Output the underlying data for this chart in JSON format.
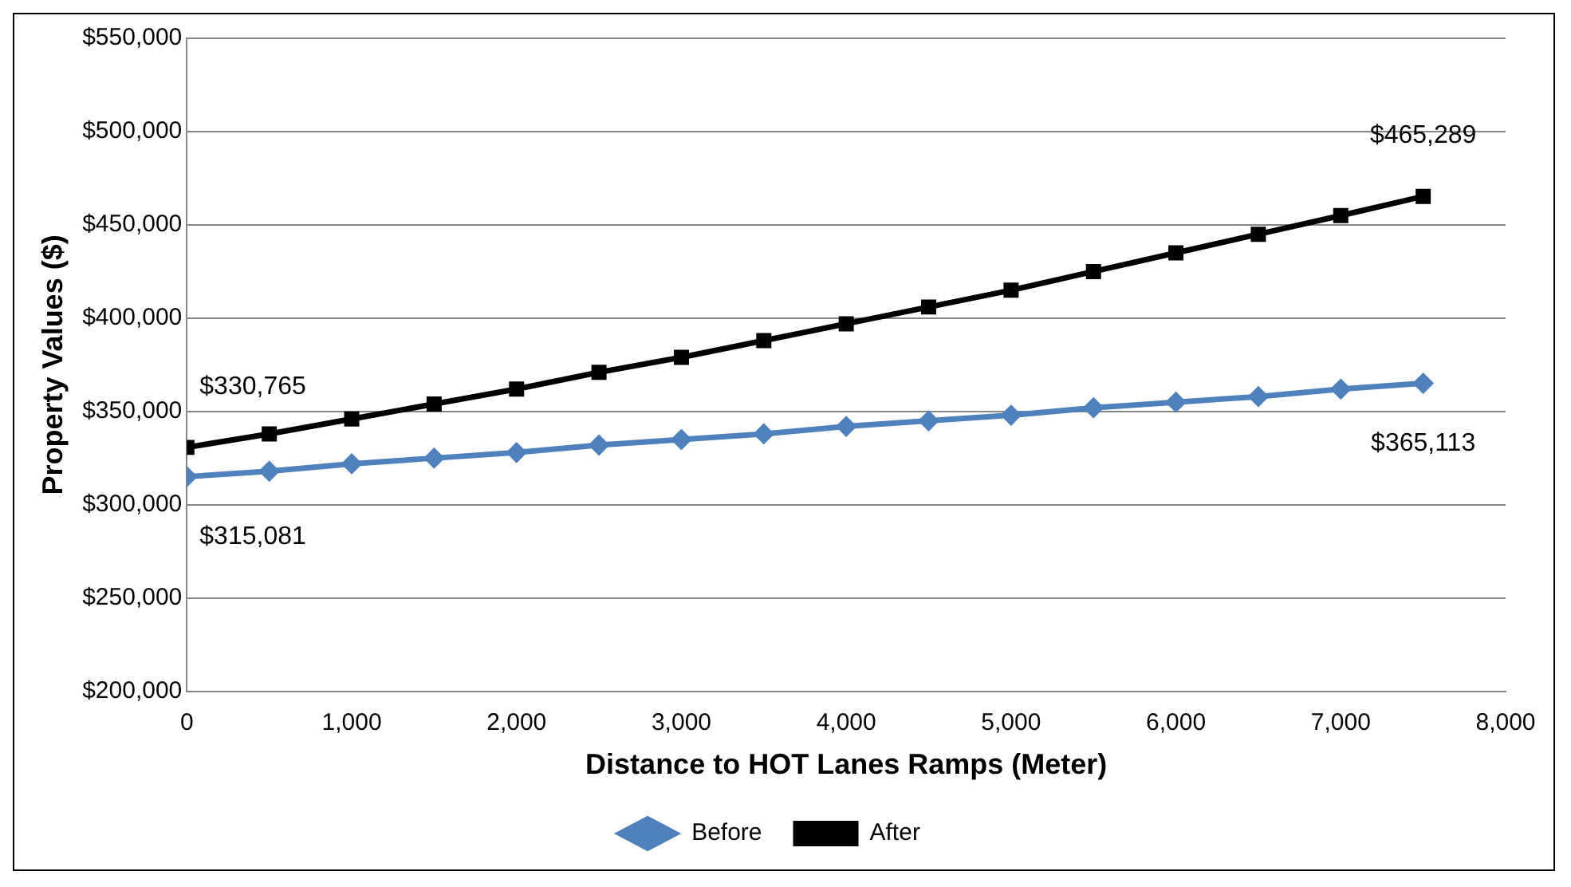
{
  "chart_data": {
    "type": "line",
    "xlabel": "Distance to HOT Lanes Ramps (Meter)",
    "ylabel": "Property Values ($)",
    "x": [
      0,
      500,
      1000,
      1500,
      2000,
      2500,
      3000,
      3500,
      4000,
      4500,
      5000,
      5500,
      6000,
      6500,
      7000,
      7500
    ],
    "series": [
      {
        "name": "Before",
        "color": "#4f81bd",
        "marker": "diamond",
        "values": [
          315081,
          318000,
          322000,
          325000,
          328000,
          332000,
          335000,
          338000,
          342000,
          345000,
          348000,
          352000,
          355000,
          358000,
          362000,
          365113
        ],
        "value_labels": [
          "$315,081",
          null,
          null,
          null,
          null,
          null,
          null,
          null,
          null,
          null,
          null,
          null,
          null,
          null,
          null,
          "$365,113"
        ]
      },
      {
        "name": "After",
        "color": "#000000",
        "marker": "square",
        "values": [
          330765,
          338000,
          346000,
          354000,
          362000,
          371000,
          379000,
          388000,
          397000,
          406000,
          415000,
          425000,
          435000,
          445000,
          455000,
          465289
        ],
        "value_labels": [
          "$330,765",
          null,
          null,
          null,
          null,
          null,
          null,
          null,
          null,
          null,
          null,
          null,
          null,
          null,
          null,
          "$465,289"
        ]
      }
    ],
    "xlim": [
      0,
      8000
    ],
    "xticks": [
      0,
      {
        "value": 1000,
        "label": "1,000"
      },
      {
        "value": 2000,
        "label": "2,000"
      },
      {
        "value": 3000,
        "label": "3,000"
      },
      {
        "value": 4000,
        "label": "4,000"
      },
      {
        "value": 5000,
        "label": "5,000"
      },
      {
        "value": 6000,
        "label": "6,000"
      },
      {
        "value": 7000,
        "label": "7,000"
      },
      {
        "value": 8000,
        "label": "8,000"
      }
    ],
    "ylim": [
      200000,
      550000
    ],
    "yticks": [
      {
        "value": 200000,
        "label": "$200,000"
      },
      {
        "value": 250000,
        "label": "$250,000"
      },
      {
        "value": 300000,
        "label": "$300,000"
      },
      {
        "value": 350000,
        "label": "$350,000"
      },
      {
        "value": 400000,
        "label": "$400,000"
      },
      {
        "value": 450000,
        "label": "$450,000"
      },
      {
        "value": 500000,
        "label": "$500,000"
      },
      {
        "value": 550000,
        "label": "$550,000"
      }
    ],
    "grid": "y",
    "legend": "bottom",
    "line_style": "solid"
  }
}
